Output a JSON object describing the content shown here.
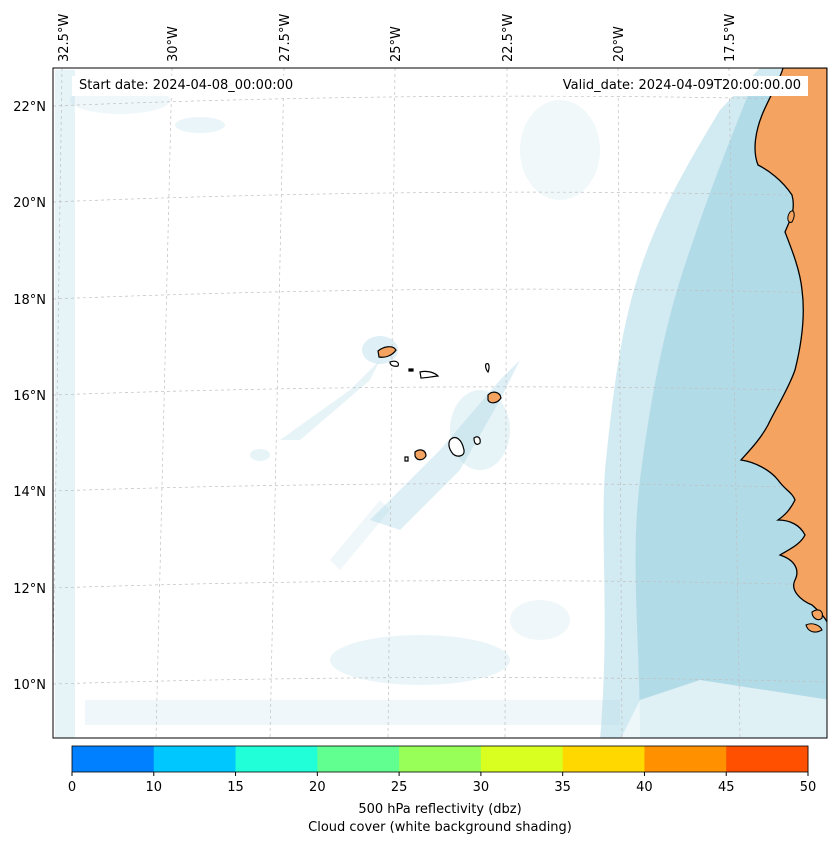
{
  "map": {
    "start_date_label": "Start date: 2024-04-08_00:00:00",
    "valid_date_label": "Valid_date: 2024-04-09T20:00:00.00",
    "longitude_labels": [
      "32.5°W",
      "30°W",
      "27.5°W",
      "25°W",
      "22.5°W",
      "20°W",
      "17.5°W"
    ],
    "latitude_labels": [
      "22°N",
      "20°N",
      "18°N",
      "16°N",
      "14°N",
      "12°N",
      "10°N"
    ],
    "land_color": "#f4a460",
    "cloud_color": "#add8e6",
    "ocean_color": "#ffffff",
    "gridline_style": "dashed light grey"
  },
  "colorbar": {
    "title": "500 hPa reflectivity (dbz)",
    "subtitle": "Cloud cover (white background shading)",
    "tick_labels": [
      "0",
      "10",
      "15",
      "20",
      "25",
      "30",
      "35",
      "40",
      "45",
      "50"
    ],
    "colors": [
      "#0080ff",
      "#00c8ff",
      "#20ffd8",
      "#60ff90",
      "#98ff58",
      "#d8ff20",
      "#ffd800",
      "#ff9000",
      "#ff5000"
    ]
  }
}
